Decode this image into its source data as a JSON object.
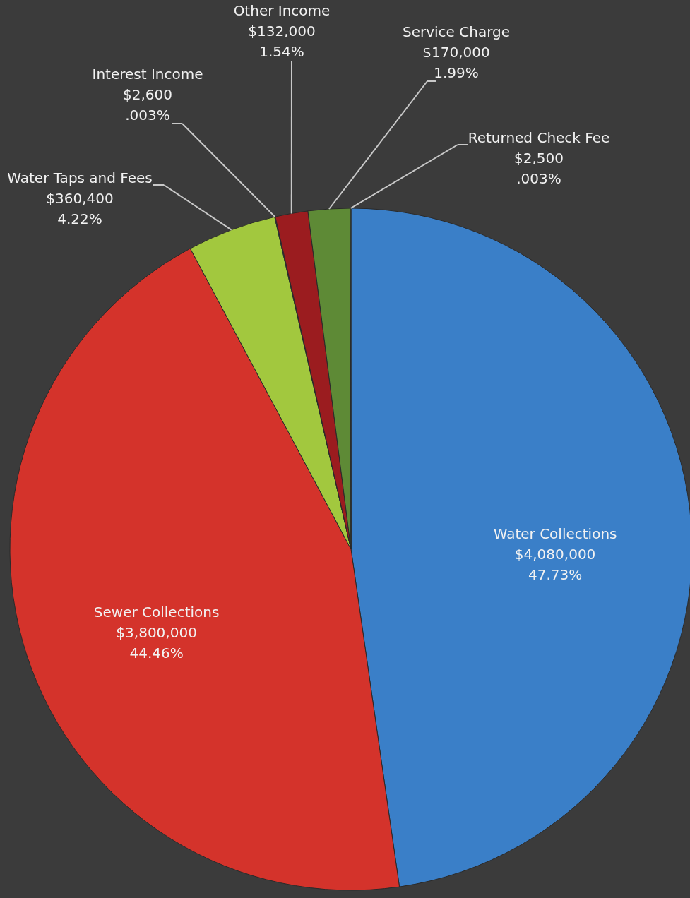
{
  "chart_data": {
    "type": "pie",
    "categories": [
      "Water Collections",
      "Sewer Collections",
      "Water Taps and Fees",
      "Interest Income",
      "Other Income",
      "Service Charge",
      "Returned Check Fee"
    ],
    "values": [
      4080000,
      3800000,
      360400,
      2600,
      132000,
      170000,
      2500
    ],
    "colors": [
      "#3a7fc8",
      "#d4332b",
      "#a2c83e",
      "#4f7fb8",
      "#9b1c1f",
      "#5e8a36",
      "#6a9a40"
    ],
    "value_labels": [
      "$4,080,000\n47.73%",
      "$3,800,000\n44.46%",
      "$360,400\n4.22%",
      "$2,600\n.003%",
      "$132,000\n1.54%",
      "$170,000\n1.99%",
      "$2,500\n.003%"
    ]
  }
}
